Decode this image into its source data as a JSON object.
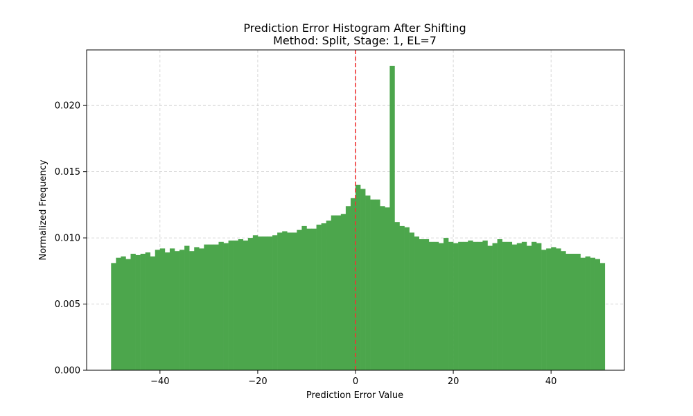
{
  "chart_data": {
    "type": "bar",
    "title": "Prediction Error Histogram After Shifting",
    "subtitle": "Method: Split, Stage: 1, EL=7",
    "xlabel": "Prediction Error Value",
    "ylabel": "Normalized Frequency",
    "xlim": [
      -55,
      55
    ],
    "ylim": [
      0,
      0.0242
    ],
    "xticks": [
      -40,
      -20,
      0,
      20,
      40
    ],
    "xtick_labels": [
      "−40",
      "−20",
      "0",
      "20",
      "40"
    ],
    "yticks": [
      0,
      0.005,
      0.01,
      0.015,
      0.02
    ],
    "ytick_labels": [
      "0.000",
      "0.005",
      "0.010",
      "0.015",
      "0.020"
    ],
    "grid": true,
    "bar_color": "#4ca64c",
    "reference_line": {
      "x": 0,
      "color": "#ee3333",
      "style": "dashed"
    },
    "bins": {
      "start": -50,
      "width": 1,
      "values": [
        0.0081,
        0.0085,
        0.0086,
        0.0084,
        0.0088,
        0.0087,
        0.0088,
        0.0089,
        0.0086,
        0.0091,
        0.0092,
        0.0089,
        0.0092,
        0.009,
        0.0091,
        0.0094,
        0.009,
        0.0093,
        0.0092,
        0.0095,
        0.0095,
        0.0095,
        0.0097,
        0.0096,
        0.0098,
        0.0098,
        0.0099,
        0.0098,
        0.01,
        0.0102,
        0.0101,
        0.0101,
        0.0101,
        0.0102,
        0.0104,
        0.0105,
        0.0104,
        0.0104,
        0.0106,
        0.0109,
        0.0107,
        0.0107,
        0.011,
        0.0111,
        0.0113,
        0.0117,
        0.0117,
        0.0118,
        0.0124,
        0.013,
        0.014,
        0.0137,
        0.0132,
        0.0129,
        0.0129,
        0.0124,
        0.0123,
        0.023,
        0.0112,
        0.0109,
        0.0108,
        0.0104,
        0.0101,
        0.0099,
        0.0099,
        0.0097,
        0.0097,
        0.0096,
        0.01,
        0.0097,
        0.0096,
        0.0097,
        0.0097,
        0.0098,
        0.0097,
        0.0097,
        0.0098,
        0.0094,
        0.0096,
        0.0099,
        0.0097,
        0.0097,
        0.0095,
        0.0096,
        0.0097,
        0.0094,
        0.0097,
        0.0096,
        0.0091,
        0.0092,
        0.0093,
        0.0092,
        0.009,
        0.0088,
        0.0088,
        0.0088,
        0.0085,
        0.0086,
        0.0085,
        0.0084,
        0.0081
      ]
    }
  }
}
